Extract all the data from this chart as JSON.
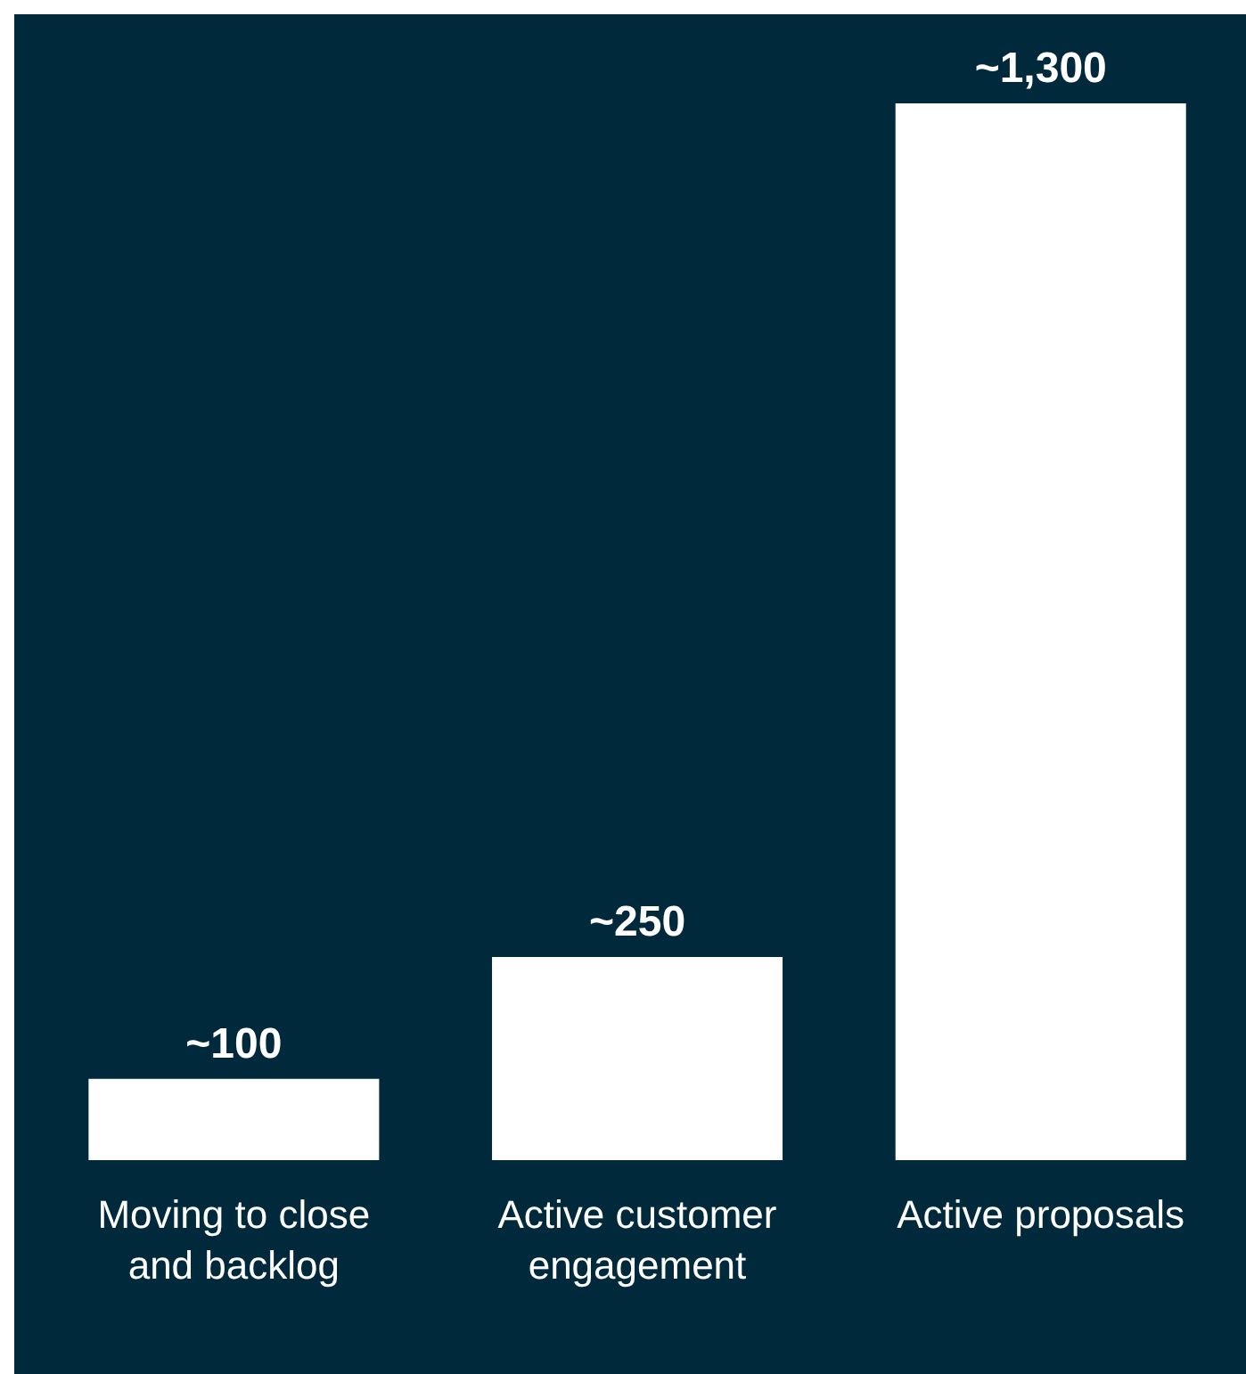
{
  "chart_data": {
    "type": "bar",
    "categories": [
      "Moving to close and backlog",
      "Active customer engagement",
      "Active proposals"
    ],
    "values": [
      100,
      250,
      1300
    ],
    "value_labels": [
      "~100",
      "~250",
      "~1,300"
    ],
    "color": "#ffffff",
    "grid": false,
    "legend": false
  }
}
